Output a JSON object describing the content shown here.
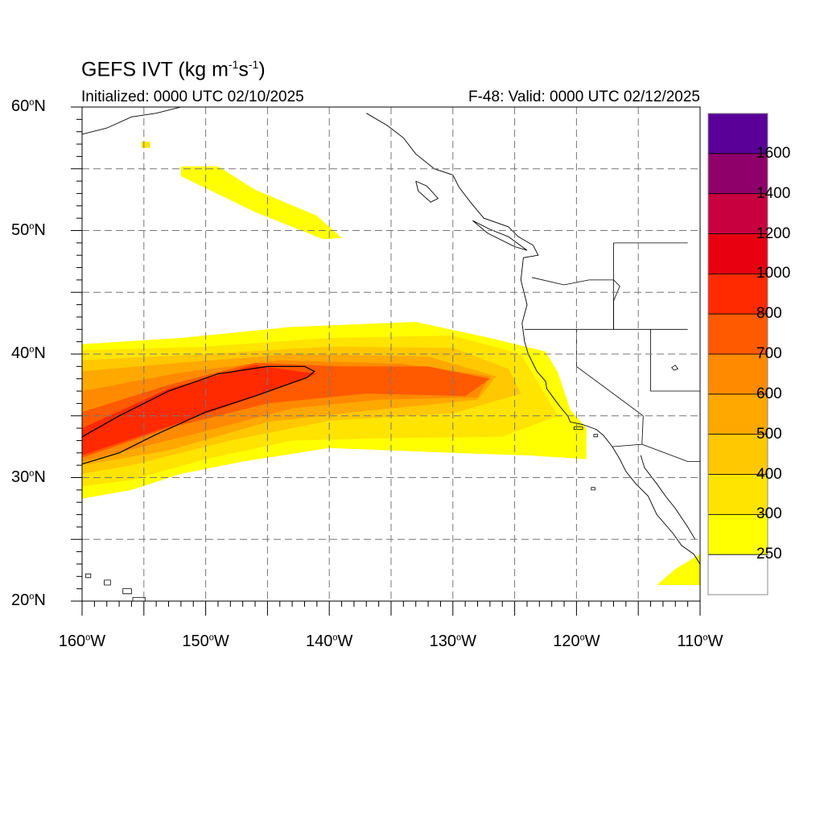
{
  "title": {
    "main": "GEFS IVT (kg m",
    "exp1": "-1",
    "mid": "s",
    "exp2": "-1",
    "end": ")"
  },
  "initialized": "Initialized: 0000 UTC 02/10/2025",
  "valid": "F-48: Valid: 0000 UTC 02/12/2025",
  "map_extent": {
    "lon": [
      -160,
      -110
    ],
    "lat": [
      20,
      60
    ]
  },
  "lat_labels": [
    {
      "value": 60,
      "text": "60",
      "suffix": "N"
    },
    {
      "value": 50,
      "text": "50",
      "suffix": "N"
    },
    {
      "value": 40,
      "text": "40",
      "suffix": "N"
    },
    {
      "value": 30,
      "text": "30",
      "suffix": "N"
    },
    {
      "value": 20,
      "text": "20",
      "suffix": "N"
    }
  ],
  "lon_labels": [
    {
      "value": -160,
      "text": "160",
      "suffix": "W"
    },
    {
      "value": -150,
      "text": "150",
      "suffix": "W"
    },
    {
      "value": -140,
      "text": "140",
      "suffix": "W"
    },
    {
      "value": -130,
      "text": "130",
      "suffix": "W"
    },
    {
      "value": -120,
      "text": "120",
      "suffix": "W"
    },
    {
      "value": -110,
      "text": "110",
      "suffix": "W"
    }
  ],
  "colorbar": {
    "levels": [
      250,
      300,
      400,
      500,
      600,
      700,
      800,
      1000,
      1200,
      1400,
      1600
    ],
    "labels": [
      "250",
      "300",
      "400",
      "500",
      "600",
      "700",
      "800",
      "1000",
      "1200",
      "1400",
      "1600"
    ],
    "colors": [
      "#ffffff",
      "#ffff00",
      "#ffe400",
      "#ffc800",
      "#ffa800",
      "#ff8a00",
      "#ff5a00",
      "#ff2a00",
      "#e80010",
      "#c80040",
      "#90006a",
      "#5a0098"
    ]
  },
  "ivt_regions": [
    {
      "name": "main-river-250",
      "level_index": 1,
      "coords": [
        [
          -160,
          40.8
        ],
        [
          -152,
          41.3
        ],
        [
          -143,
          42.2
        ],
        [
          -133,
          42.6
        ],
        [
          -127,
          41.3
        ],
        [
          -122.5,
          40.2
        ],
        [
          -121.5,
          38.5
        ],
        [
          -120.5,
          35.5
        ],
        [
          -119.2,
          34
        ],
        [
          -119.2,
          31.5
        ],
        [
          -124,
          31.8
        ],
        [
          -130,
          32
        ],
        [
          -140,
          32.4
        ],
        [
          -147,
          31.3
        ],
        [
          -152,
          30.3
        ],
        [
          -156,
          29
        ],
        [
          -160,
          28.3
        ]
      ]
    },
    {
      "name": "main-river-300",
      "level_index": 2,
      "coords": [
        [
          -160,
          40.3
        ],
        [
          -150,
          40.6
        ],
        [
          -140,
          41.3
        ],
        [
          -130,
          41.5
        ],
        [
          -124.5,
          40
        ],
        [
          -123,
          37.5
        ],
        [
          -121.5,
          35
        ],
        [
          -126,
          33.3
        ],
        [
          -135,
          33.2
        ],
        [
          -143,
          33
        ],
        [
          -150,
          31.5
        ],
        [
          -156,
          29.8
        ],
        [
          -160,
          29.3
        ]
      ]
    },
    {
      "name": "main-river-400",
      "level_index": 3,
      "coords": [
        [
          -160,
          39.5
        ],
        [
          -150,
          40
        ],
        [
          -140,
          40.6
        ],
        [
          -130,
          40.5
        ],
        [
          -125.5,
          38.8
        ],
        [
          -124.5,
          36.8
        ],
        [
          -130,
          35.2
        ],
        [
          -140,
          34.6
        ],
        [
          -148,
          33
        ],
        [
          -156,
          31
        ],
        [
          -160,
          30.3
        ]
      ]
    },
    {
      "name": "main-river-500",
      "level_index": 4,
      "coords": [
        [
          -160,
          38.6
        ],
        [
          -152,
          39.3
        ],
        [
          -143,
          40
        ],
        [
          -132,
          39.8
        ],
        [
          -126.5,
          38.2
        ],
        [
          -128,
          36.3
        ],
        [
          -136,
          35.5
        ],
        [
          -145,
          34.5
        ],
        [
          -153,
          32.2
        ],
        [
          -160,
          31
        ]
      ]
    },
    {
      "name": "main-river-600",
      "level_index": 5,
      "coords": [
        [
          -160,
          37
        ],
        [
          -152,
          38.5
        ],
        [
          -144,
          39.5
        ],
        [
          -134,
          39.2
        ],
        [
          -127,
          38.2
        ],
        [
          -128,
          36.5
        ],
        [
          -136,
          36.3
        ],
        [
          -143,
          35.6
        ],
        [
          -151,
          33.5
        ],
        [
          -160,
          31.3
        ]
      ]
    },
    {
      "name": "main-river-700",
      "level_index": 6,
      "coords": [
        [
          -160,
          35.3
        ],
        [
          -153,
          37.5
        ],
        [
          -146,
          39.3
        ],
        [
          -139,
          39
        ],
        [
          -132,
          39
        ],
        [
          -127,
          38
        ],
        [
          -129,
          36.6
        ],
        [
          -137,
          36.8
        ],
        [
          -145,
          36
        ],
        [
          -153,
          34
        ],
        [
          -160,
          31.6
        ]
      ]
    },
    {
      "name": "main-river-800",
      "level_index": 7,
      "coords": [
        [
          -160,
          34
        ],
        [
          -153,
          37.2
        ],
        [
          -146,
          39.1
        ],
        [
          -141,
          38.4
        ],
        [
          -147,
          36.2
        ],
        [
          -154,
          33.8
        ],
        [
          -160,
          31.8
        ]
      ]
    },
    {
      "name": "north-band-250",
      "level_index": 1,
      "coords": [
        [
          -152,
          55.2
        ],
        [
          -149,
          55.2
        ],
        [
          -146,
          53.3
        ],
        [
          -141,
          51.2
        ],
        [
          -139,
          49.4
        ],
        [
          -140.5,
          49.3
        ],
        [
          -146,
          51.5
        ],
        [
          -152,
          54.4
        ]
      ]
    },
    {
      "name": "south-patch-250",
      "level_index": 1,
      "coords": [
        [
          -113.5,
          21.3
        ],
        [
          -110,
          21.3
        ],
        [
          -110,
          23.8
        ],
        [
          -112,
          22.6
        ]
      ]
    },
    {
      "name": "alaska-speck-300",
      "level_index": 2,
      "coords": [
        [
          -155.2,
          57.2
        ],
        [
          -154.5,
          57.2
        ],
        [
          -154.5,
          56.7
        ],
        [
          -155.2,
          56.7
        ]
      ]
    }
  ],
  "contour_1000": [
    [
      -160,
      33.3
    ],
    [
      -157,
      35
    ],
    [
      -153,
      37
    ],
    [
      -149,
      38.4
    ],
    [
      -145,
      39
    ],
    [
      -142,
      39
    ],
    [
      -141.2,
      38.6
    ],
    [
      -141.8,
      38.1
    ],
    [
      -146,
      36.6
    ],
    [
      -150,
      35.3
    ],
    [
      -154,
      33.5
    ],
    [
      -157,
      32
    ],
    [
      -160,
      31.1
    ]
  ],
  "state_borders": [
    [
      [
        -123.6,
        46.2
      ],
      [
        -121,
        45.6
      ],
      [
        -119,
        46
      ],
      [
        -117,
        46
      ]
    ],
    [
      [
        -124.2,
        42
      ],
      [
        -120,
        42
      ],
      [
        -117,
        42
      ],
      [
        -111,
        42
      ]
    ],
    [
      [
        -120,
        42
      ],
      [
        -120,
        39
      ],
      [
        -114.6,
        35
      ]
    ],
    [
      [
        -117,
        49
      ],
      [
        -117,
        42
      ]
    ],
    [
      [
        -117,
        46
      ],
      [
        -116.5,
        45.5
      ],
      [
        -117,
        44.3
      ],
      [
        -117,
        42
      ]
    ],
    [
      [
        -114.6,
        35
      ],
      [
        -114.7,
        32.7
      ],
      [
        -117.1,
        32.5
      ]
    ],
    [
      [
        -117,
        49
      ],
      [
        -111,
        49
      ]
    ],
    [
      [
        -114,
        42
      ],
      [
        -114,
        37
      ],
      [
        -110,
        37
      ]
    ],
    [
      [
        -114.7,
        32.7
      ],
      [
        -111,
        31.3
      ],
      [
        -110,
        31.3
      ]
    ]
  ],
  "coastlines": [
    [
      [
        -160,
        57.8
      ],
      [
        -158,
        58.3
      ],
      [
        -156,
        59.2
      ],
      [
        -154,
        59.5
      ],
      [
        -152,
        60
      ]
    ],
    [
      [
        -137,
        59.5
      ],
      [
        -135.3,
        58.5
      ],
      [
        -134,
        57.5
      ],
      [
        -133,
        56.2
      ],
      [
        -131.5,
        55
      ],
      [
        -130,
        54.5
      ],
      [
        -129.5,
        53.5
      ],
      [
        -128.5,
        52.2
      ],
      [
        -127.5,
        51
      ],
      [
        -125.5,
        50.3
      ],
      [
        -124.7,
        49.5
      ],
      [
        -123.5,
        48.8
      ],
      [
        -123.1,
        48
      ],
      [
        -124.3,
        47.8
      ],
      [
        -124.5,
        46
      ],
      [
        -124,
        44
      ],
      [
        -124.4,
        42.5
      ],
      [
        -124.2,
        41
      ],
      [
        -123.9,
        40
      ],
      [
        -123.2,
        38.6
      ],
      [
        -122.5,
        37.8
      ],
      [
        -122.4,
        37.2
      ],
      [
        -121.9,
        36.5
      ],
      [
        -121.3,
        35.7
      ],
      [
        -120.7,
        35
      ],
      [
        -120.5,
        34.5
      ],
      [
        -119.5,
        34.3
      ],
      [
        -118.4,
        33.9
      ],
      [
        -117.8,
        33.4
      ],
      [
        -117.1,
        32.5
      ],
      [
        -116.5,
        31.5
      ],
      [
        -116,
        30.5
      ],
      [
        -115.2,
        29.5
      ],
      [
        -114.2,
        28.5
      ],
      [
        -113.5,
        27
      ],
      [
        -112.2,
        25.5
      ],
      [
        -111.5,
        24.5
      ],
      [
        -110.5,
        23.8
      ],
      [
        -110,
        23
      ]
    ],
    [
      [
        -114.8,
        31.8
      ],
      [
        -114.5,
        30.8
      ],
      [
        -113.5,
        29.5
      ],
      [
        -112.8,
        28.5
      ],
      [
        -112,
        27.5
      ],
      [
        -111,
        26
      ],
      [
        -110.4,
        25
      ]
    ],
    [
      [
        -128.4,
        50.8
      ],
      [
        -127,
        50.1
      ],
      [
        -125.5,
        49.5
      ],
      [
        -124,
        48.4
      ],
      [
        -125,
        48.7
      ],
      [
        -127.2,
        49.8
      ],
      [
        -128.4,
        50.8
      ]
    ],
    [
      [
        -133,
        54
      ],
      [
        -132.1,
        53.6
      ],
      [
        -131.2,
        52.6
      ],
      [
        -131.8,
        52.3
      ],
      [
        -132.8,
        53.2
      ],
      [
        -133,
        54
      ]
    ],
    [
      [
        -160,
        33.4
      ],
      [
        -160,
        33.4
      ]
    ]
  ],
  "islands": [
    [
      [
        -159.7,
        22.2
      ],
      [
        -159.3,
        22.2
      ],
      [
        -159.3,
        21.9
      ],
      [
        -159.7,
        21.9
      ]
    ],
    [
      [
        -158.2,
        21.7
      ],
      [
        -157.7,
        21.7
      ],
      [
        -157.7,
        21.3
      ],
      [
        -158.2,
        21.3
      ]
    ],
    [
      [
        -156.7,
        21.0
      ],
      [
        -156.0,
        21.0
      ],
      [
        -156.0,
        20.6
      ],
      [
        -156.7,
        20.6
      ]
    ],
    [
      [
        -155.9,
        20.3
      ],
      [
        -154.9,
        20.3
      ],
      [
        -154.9,
        19.9
      ],
      [
        -155.9,
        19.9
      ]
    ],
    [
      [
        -118.6,
        33.5
      ],
      [
        -118.3,
        33.5
      ],
      [
        -118.3,
        33.3
      ],
      [
        -118.6,
        33.3
      ]
    ],
    [
      [
        -120.2,
        34.1
      ],
      [
        -119.5,
        34.1
      ],
      [
        -119.5,
        33.9
      ],
      [
        -120.2,
        33.9
      ]
    ],
    [
      [
        -118.8,
        29.2
      ],
      [
        -118.5,
        29.2
      ],
      [
        -118.5,
        29
      ],
      [
        -118.8,
        29
      ]
    ],
    [
      [
        -112.3,
        38.9
      ],
      [
        -112,
        39.1
      ],
      [
        -111.8,
        38.8
      ],
      [
        -112.1,
        38.7
      ]
    ]
  ]
}
